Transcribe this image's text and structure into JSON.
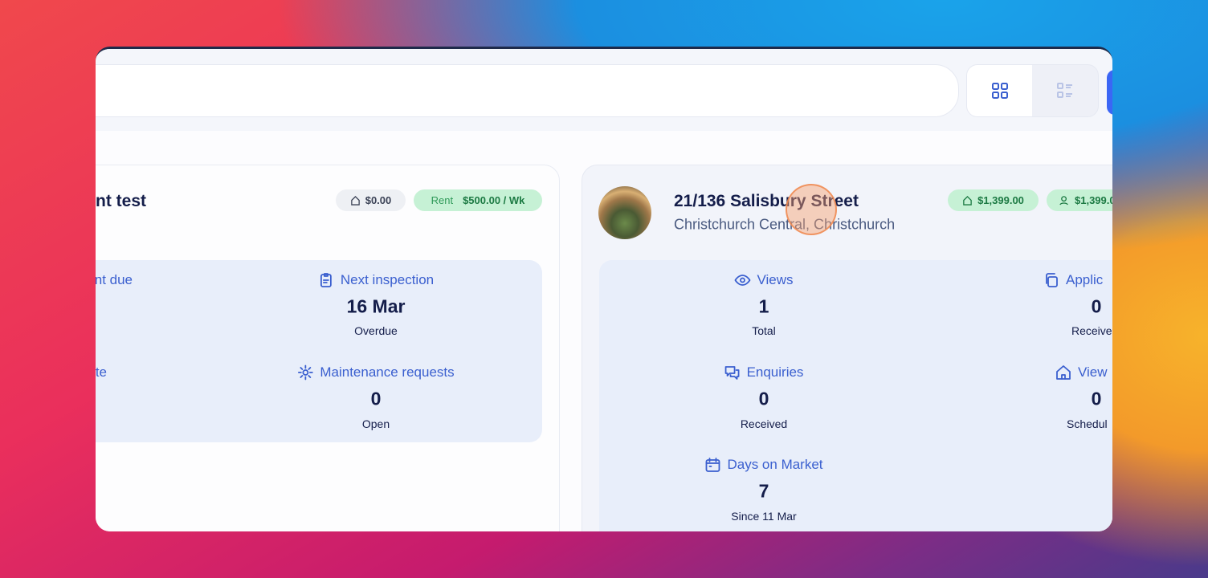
{
  "left_card": {
    "title": "nt test",
    "price_badge": "$0.00",
    "rent_badge": {
      "label": "Rent",
      "amount": "$500.00 / Wk"
    },
    "stats": [
      {
        "label": "nt due"
      },
      {
        "label": "Next inspection",
        "value": "16 Mar",
        "caption": "Overdue"
      },
      {
        "label": "te"
      },
      {
        "label": "Maintenance requests",
        "value": 0,
        "caption": "Open"
      }
    ]
  },
  "right_card": {
    "title": "21/136 Salisbury Street",
    "subtitle": "Christchurch Central, Christchurch",
    "badges": [
      "$1,399.00",
      "$1,399.0"
    ],
    "stats": [
      {
        "label": "Views",
        "value": 1,
        "caption": "Total"
      },
      {
        "label": "Applic",
        "value": 0,
        "caption": "Receive"
      },
      {
        "label": "Enquiries",
        "value": 0,
        "caption": "Received"
      },
      {
        "label": "View",
        "value": 0,
        "caption": "Schedul"
      },
      {
        "label": "Days on Market",
        "value": 7,
        "caption": "Since 11 Mar"
      }
    ]
  }
}
